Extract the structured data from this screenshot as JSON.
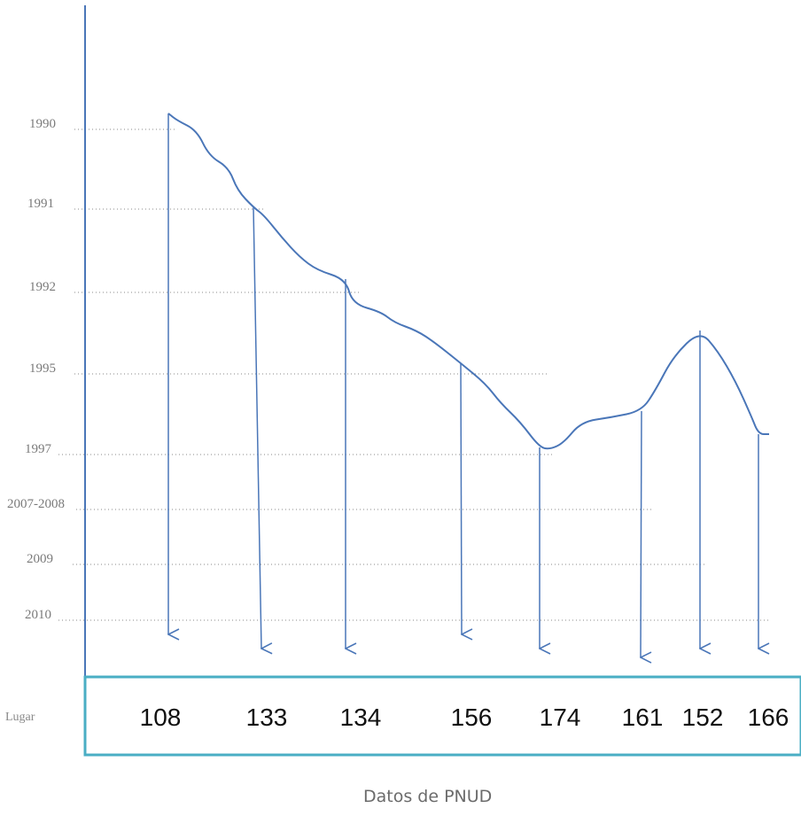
{
  "chart_data": {
    "type": "line",
    "title": "",
    "y_categories": [
      "1990",
      "1991",
      "1992",
      "1995",
      "1997",
      "2007-2008",
      "2009",
      "2010"
    ],
    "points": [
      {
        "year": "1990",
        "rank": 108
      },
      {
        "year": "1991",
        "rank": 133
      },
      {
        "year": "1992",
        "rank": 134
      },
      {
        "year": "1995",
        "rank": 156
      },
      {
        "year": "1997",
        "rank": 174
      },
      {
        "year": "2007-2008",
        "rank": 161
      },
      {
        "year": "2009",
        "rank": 152
      },
      {
        "year": "2010",
        "rank": 166
      }
    ],
    "row_label": "Lugar",
    "source": "Datos de PNUD",
    "grid": "dotted",
    "colors": {
      "line": "#4a76b8",
      "box": "#4aaec4",
      "grid": "#8a8a8a"
    }
  }
}
